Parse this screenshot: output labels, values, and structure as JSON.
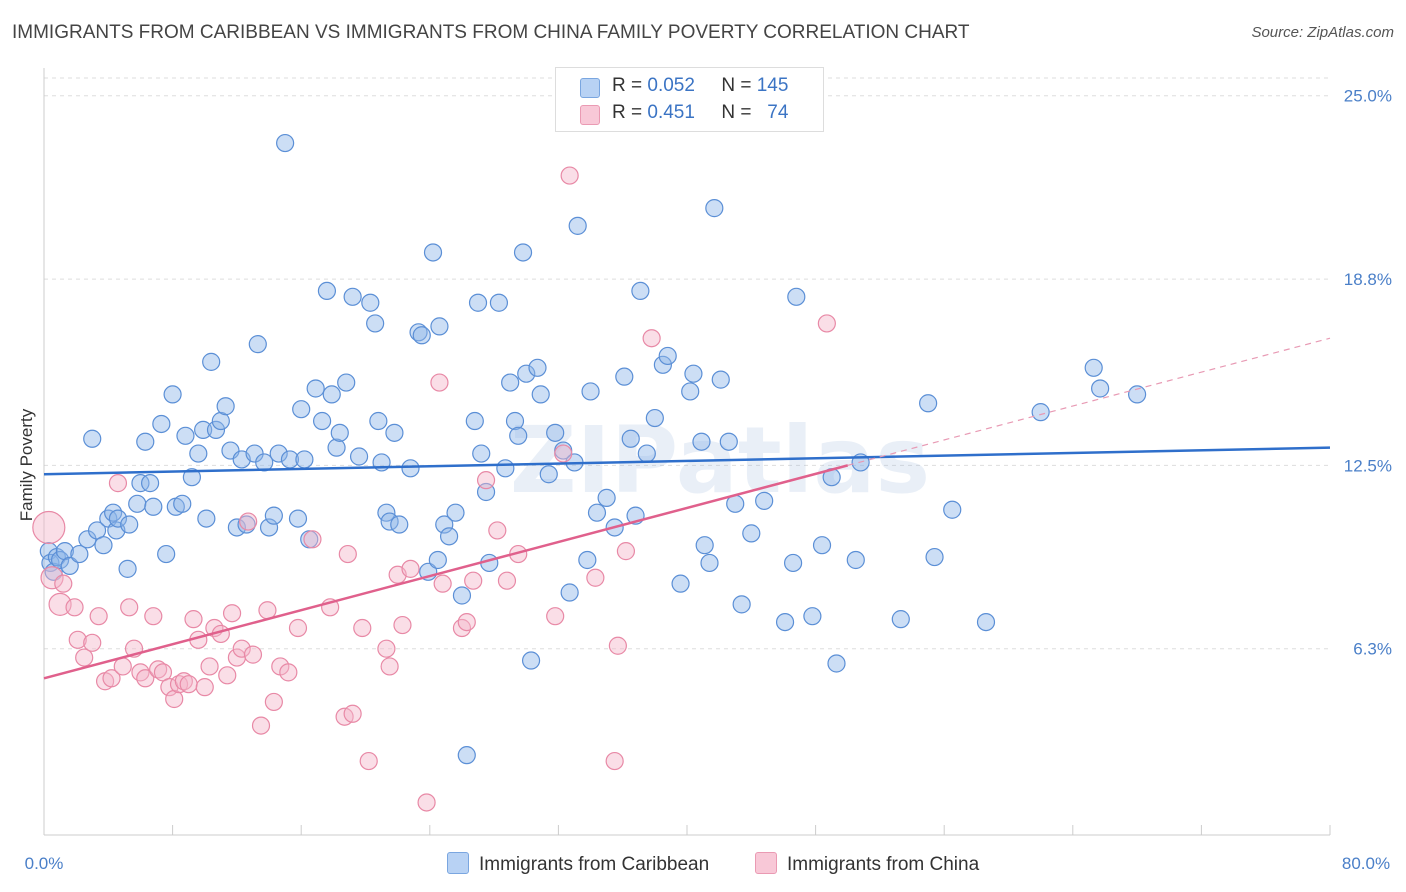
{
  "title": "IMMIGRANTS FROM CARIBBEAN VS IMMIGRANTS FROM CHINA FAMILY POVERTY CORRELATION CHART",
  "source": "Source: ZipAtlas.com",
  "watermark": "ZIPatlas",
  "legend_top": {
    "rows": [
      {
        "r_label": "R =",
        "r_value": "0.052",
        "n_label": "N =",
        "n_value": "145",
        "color": "#aac8f0"
      },
      {
        "r_label": "R =",
        "r_value": "0.451",
        "n_label": "N =",
        "n_value": "74",
        "color": "#f6b8cb"
      }
    ]
  },
  "chart_data": {
    "type": "scatter",
    "ylabel": "Family Poverty",
    "x_tick_labels": [
      "0.0%",
      "80.0%"
    ],
    "y_tick_labels": [
      "6.3%",
      "12.5%",
      "18.8%",
      "25.0%"
    ],
    "y_ticks": [
      6.3,
      12.5,
      18.8,
      25.0
    ],
    "xlim": [
      0,
      80
    ],
    "ylim": [
      0,
      25.6
    ],
    "grid": true,
    "series": [
      {
        "name": "Immigrants from Caribbean",
        "color": "#8fb6e8",
        "stroke": "#5b8fd6",
        "trend": {
          "x": [
            0,
            80
          ],
          "y": [
            12.2,
            13.1
          ],
          "color": "#2f6fcb"
        },
        "points": [
          [
            0.3,
            9.6
          ],
          [
            0.4,
            9.2
          ],
          [
            0.6,
            8.9
          ],
          [
            0.8,
            9.4
          ],
          [
            1.0,
            9.3
          ],
          [
            1.3,
            9.6
          ],
          [
            1.6,
            9.1
          ],
          [
            2.2,
            9.5
          ],
          [
            2.7,
            10.0
          ],
          [
            3.0,
            13.4
          ],
          [
            3.3,
            10.3
          ],
          [
            3.7,
            9.8
          ],
          [
            4.0,
            10.7
          ],
          [
            4.3,
            10.9
          ],
          [
            4.5,
            10.3
          ],
          [
            4.6,
            10.7
          ],
          [
            5.2,
            9.0
          ],
          [
            5.3,
            10.5
          ],
          [
            5.8,
            11.2
          ],
          [
            6.0,
            11.9
          ],
          [
            6.3,
            13.3
          ],
          [
            6.6,
            11.9
          ],
          [
            6.8,
            11.1
          ],
          [
            7.3,
            13.9
          ],
          [
            7.6,
            9.5
          ],
          [
            8.0,
            14.9
          ],
          [
            8.2,
            11.1
          ],
          [
            8.6,
            11.2
          ],
          [
            8.8,
            13.5
          ],
          [
            9.2,
            12.1
          ],
          [
            9.6,
            12.9
          ],
          [
            9.9,
            13.7
          ],
          [
            10.1,
            10.7
          ],
          [
            10.4,
            16.0
          ],
          [
            10.7,
            13.7
          ],
          [
            11.0,
            14.0
          ],
          [
            11.3,
            14.5
          ],
          [
            11.6,
            13.0
          ],
          [
            12.0,
            10.4
          ],
          [
            12.3,
            12.7
          ],
          [
            12.6,
            10.5
          ],
          [
            13.1,
            12.9
          ],
          [
            13.3,
            16.6
          ],
          [
            13.7,
            12.6
          ],
          [
            14.0,
            10.4
          ],
          [
            14.3,
            10.8
          ],
          [
            14.6,
            12.9
          ],
          [
            15.0,
            23.4
          ],
          [
            15.3,
            12.7
          ],
          [
            15.8,
            10.7
          ],
          [
            16.0,
            14.4
          ],
          [
            16.2,
            12.7
          ],
          [
            16.5,
            10.0
          ],
          [
            16.9,
            15.1
          ],
          [
            17.3,
            14.0
          ],
          [
            17.6,
            18.4
          ],
          [
            17.9,
            14.9
          ],
          [
            18.2,
            13.1
          ],
          [
            18.4,
            13.6
          ],
          [
            18.8,
            15.3
          ],
          [
            19.2,
            18.2
          ],
          [
            19.6,
            12.8
          ],
          [
            20.3,
            18.0
          ],
          [
            20.6,
            17.3
          ],
          [
            20.8,
            14.0
          ],
          [
            21.0,
            12.6
          ],
          [
            21.3,
            10.9
          ],
          [
            21.5,
            10.6
          ],
          [
            21.8,
            13.6
          ],
          [
            22.1,
            10.5
          ],
          [
            22.8,
            12.4
          ],
          [
            23.3,
            17.0
          ],
          [
            23.5,
            16.9
          ],
          [
            23.9,
            8.9
          ],
          [
            24.2,
            19.7
          ],
          [
            24.5,
            9.3
          ],
          [
            24.6,
            17.2
          ],
          [
            24.9,
            10.5
          ],
          [
            25.2,
            10.1
          ],
          [
            25.6,
            10.9
          ],
          [
            26.0,
            8.1
          ],
          [
            26.3,
            2.7
          ],
          [
            26.8,
            14.0
          ],
          [
            27.0,
            18.0
          ],
          [
            27.2,
            12.9
          ],
          [
            27.5,
            11.6
          ],
          [
            27.7,
            9.2
          ],
          [
            28.3,
            18.0
          ],
          [
            28.7,
            12.4
          ],
          [
            29.0,
            15.3
          ],
          [
            29.3,
            14.0
          ],
          [
            29.5,
            13.5
          ],
          [
            29.8,
            19.7
          ],
          [
            30.0,
            15.6
          ],
          [
            30.3,
            5.9
          ],
          [
            30.7,
            15.8
          ],
          [
            30.9,
            14.9
          ],
          [
            31.4,
            12.2
          ],
          [
            31.8,
            13.6
          ],
          [
            32.3,
            13.0
          ],
          [
            32.7,
            8.2
          ],
          [
            33.0,
            12.6
          ],
          [
            33.2,
            20.6
          ],
          [
            33.8,
            9.3
          ],
          [
            34.0,
            15.0
          ],
          [
            34.4,
            10.9
          ],
          [
            35.0,
            11.4
          ],
          [
            35.5,
            10.4
          ],
          [
            36.1,
            15.5
          ],
          [
            36.5,
            13.4
          ],
          [
            36.8,
            10.8
          ],
          [
            37.1,
            18.4
          ],
          [
            37.5,
            12.9
          ],
          [
            38.0,
            14.1
          ],
          [
            38.5,
            15.9
          ],
          [
            38.8,
            16.2
          ],
          [
            39.6,
            8.5
          ],
          [
            40.2,
            15.0
          ],
          [
            40.4,
            15.6
          ],
          [
            40.9,
            13.3
          ],
          [
            41.1,
            9.8
          ],
          [
            41.4,
            9.2
          ],
          [
            41.7,
            21.2
          ],
          [
            42.1,
            15.4
          ],
          [
            42.6,
            13.3
          ],
          [
            43.0,
            11.2
          ],
          [
            43.4,
            7.8
          ],
          [
            44.0,
            10.2
          ],
          [
            44.8,
            11.3
          ],
          [
            46.1,
            7.2
          ],
          [
            46.6,
            9.2
          ],
          [
            46.8,
            18.2
          ],
          [
            47.8,
            7.4
          ],
          [
            48.4,
            9.8
          ],
          [
            49.0,
            12.1
          ],
          [
            49.3,
            5.8
          ],
          [
            50.5,
            9.3
          ],
          [
            50.8,
            12.6
          ],
          [
            53.3,
            7.3
          ],
          [
            55.0,
            14.6
          ],
          [
            55.4,
            9.4
          ],
          [
            56.5,
            11.0
          ],
          [
            58.6,
            7.2
          ],
          [
            62.0,
            14.3
          ],
          [
            65.3,
            15.8
          ],
          [
            65.7,
            15.1
          ],
          [
            68.0,
            14.9
          ]
        ]
      },
      {
        "name": "Immigrants from China",
        "color": "#f4b6c9",
        "stroke": "#e889a6",
        "trend": {
          "x": [
            0,
            50
          ],
          "y": [
            5.3,
            12.5
          ],
          "color": "#e0608c"
        },
        "trend_extension": {
          "x": [
            50,
            80
          ],
          "y": [
            12.5,
            16.8
          ],
          "color": "#e89ab4"
        },
        "points": [
          [
            0.3,
            10.4
          ],
          [
            0.5,
            8.7
          ],
          [
            1.0,
            7.8
          ],
          [
            1.2,
            8.5
          ],
          [
            1.9,
            7.7
          ],
          [
            2.1,
            6.6
          ],
          [
            2.5,
            6.0
          ],
          [
            3.0,
            6.5
          ],
          [
            3.4,
            7.4
          ],
          [
            3.8,
            5.2
          ],
          [
            4.2,
            5.3
          ],
          [
            4.6,
            11.9
          ],
          [
            4.9,
            5.7
          ],
          [
            5.3,
            7.7
          ],
          [
            5.6,
            6.3
          ],
          [
            6.0,
            5.5
          ],
          [
            6.3,
            5.3
          ],
          [
            6.8,
            7.4
          ],
          [
            7.1,
            5.6
          ],
          [
            7.4,
            5.5
          ],
          [
            7.8,
            5.0
          ],
          [
            8.1,
            4.6
          ],
          [
            8.4,
            5.1
          ],
          [
            8.7,
            5.2
          ],
          [
            9.0,
            5.1
          ],
          [
            9.3,
            7.3
          ],
          [
            9.6,
            6.6
          ],
          [
            10.0,
            5.0
          ],
          [
            10.3,
            5.7
          ],
          [
            10.6,
            7.0
          ],
          [
            11.0,
            6.8
          ],
          [
            11.4,
            5.4
          ],
          [
            11.7,
            7.5
          ],
          [
            12.0,
            6.0
          ],
          [
            12.3,
            6.3
          ],
          [
            12.7,
            10.6
          ],
          [
            13.0,
            6.1
          ],
          [
            13.5,
            3.7
          ],
          [
            13.9,
            7.6
          ],
          [
            14.3,
            4.5
          ],
          [
            14.7,
            5.7
          ],
          [
            15.2,
            5.5
          ],
          [
            15.8,
            7.0
          ],
          [
            16.7,
            10.0
          ],
          [
            17.8,
            7.7
          ],
          [
            18.7,
            4.0
          ],
          [
            18.9,
            9.5
          ],
          [
            19.2,
            4.1
          ],
          [
            19.8,
            7.0
          ],
          [
            20.2,
            2.5
          ],
          [
            21.3,
            6.3
          ],
          [
            21.5,
            5.7
          ],
          [
            22.0,
            8.8
          ],
          [
            22.3,
            7.1
          ],
          [
            22.8,
            9.0
          ],
          [
            23.8,
            1.1
          ],
          [
            24.6,
            15.3
          ],
          [
            24.8,
            8.5
          ],
          [
            26.0,
            7.0
          ],
          [
            26.3,
            7.2
          ],
          [
            26.7,
            8.6
          ],
          [
            27.5,
            12.0
          ],
          [
            28.2,
            10.3
          ],
          [
            28.8,
            8.6
          ],
          [
            29.5,
            9.5
          ],
          [
            31.8,
            7.4
          ],
          [
            32.3,
            12.9
          ],
          [
            32.7,
            22.3
          ],
          [
            34.3,
            8.7
          ],
          [
            35.5,
            2.5
          ],
          [
            35.7,
            6.4
          ],
          [
            36.2,
            9.6
          ],
          [
            37.8,
            16.8
          ],
          [
            48.7,
            17.3
          ]
        ]
      }
    ]
  }
}
